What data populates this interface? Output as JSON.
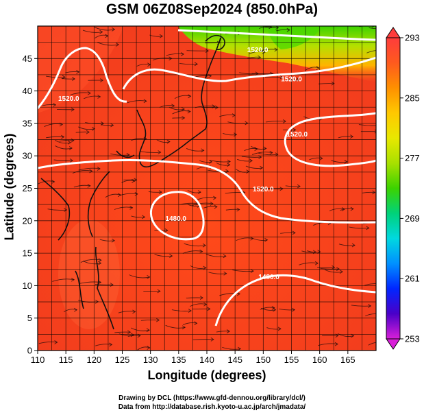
{
  "title": "GSM 06Z08Sep2024 (850.0hPa)",
  "xlabel": "Longitude (degrees)",
  "ylabel": "Latitude  (degrees)",
  "credits": {
    "line1": "Drawing by DCL (https://www.gfd-dennou.org/library/dcl/)",
    "line2": "Data from http://database.rish.kyoto-u.ac.jp/arch/jmadata/"
  },
  "map": {
    "lon_range": [
      110,
      170
    ],
    "lat_range": [
      0,
      50
    ],
    "x_ticks": [
      110,
      115,
      120,
      125,
      130,
      135,
      140,
      145,
      150,
      155,
      160,
      165
    ],
    "y_ticks": [
      0,
      5,
      10,
      15,
      20,
      25,
      30,
      35,
      40,
      45
    ],
    "grid": true,
    "contours": [
      {
        "label": "1520.0",
        "lon": 115.5,
        "lat": 38.5
      },
      {
        "label": "1520.0",
        "lon": 149,
        "lat": 46
      },
      {
        "label": "1520.0",
        "lon": 155,
        "lat": 41.5
      },
      {
        "label": "1520.0",
        "lon": 156,
        "lat": 33
      },
      {
        "label": "1520.0",
        "lon": 150,
        "lat": 24.5
      },
      {
        "label": "1480.0",
        "lon": 134.5,
        "lat": 20
      },
      {
        "label": "1480.0",
        "lon": 151,
        "lat": 11
      }
    ]
  },
  "colorbar": {
    "ticks": [
      253,
      261,
      269,
      277,
      285,
      293
    ],
    "range": [
      253,
      293
    ],
    "colors": [
      "#d81fd8",
      "#4a00c8",
      "#0026ff",
      "#0090ff",
      "#00d8e0",
      "#00d27a",
      "#3cd200",
      "#a8e000",
      "#e8e800",
      "#ffc800",
      "#ff9000",
      "#ff5a1e",
      "#ff3c3c"
    ]
  }
}
